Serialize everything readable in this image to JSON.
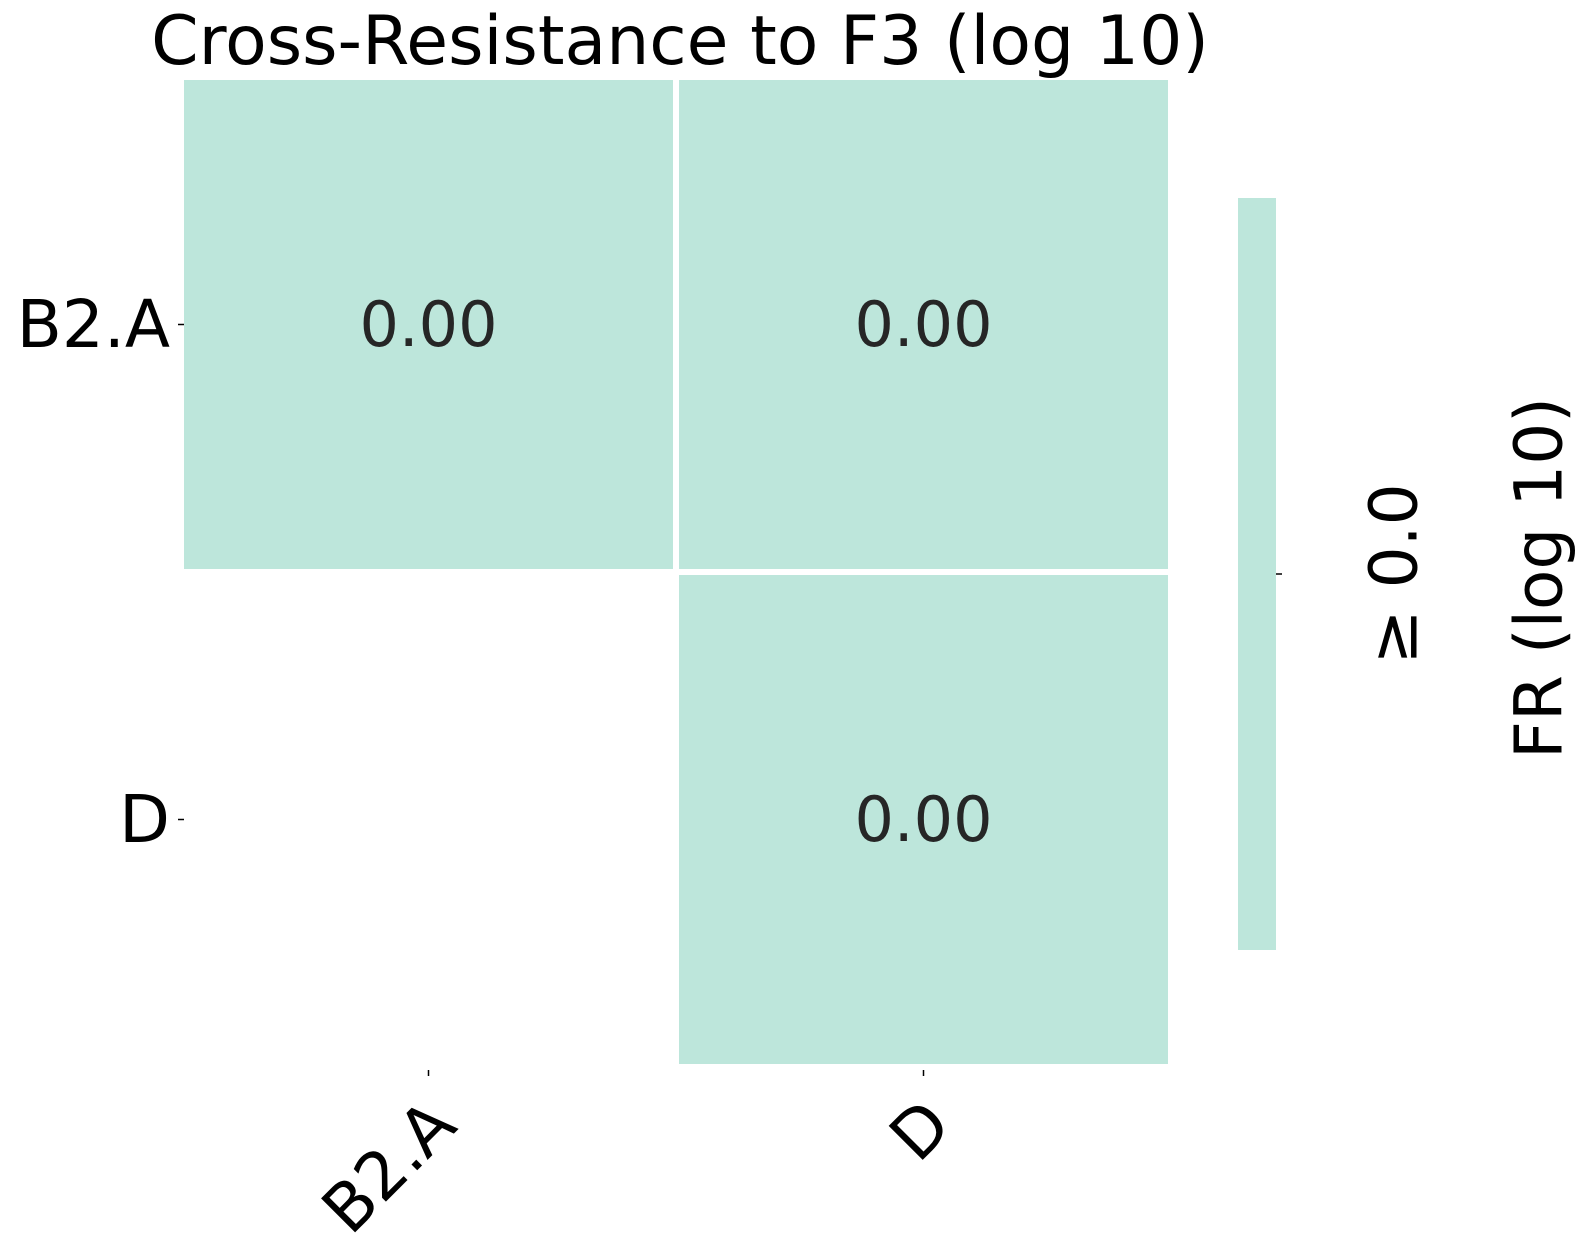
{
  "chart_data": {
    "type": "heatmap",
    "title": "Cross-Resistance to F3 (log 10)",
    "rows": [
      "B2.A",
      "D"
    ],
    "columns": [
      "B2.A",
      "D"
    ],
    "cells": [
      {
        "row": "B2.A",
        "col": "B2.A",
        "value": 0.0,
        "label": "0.00"
      },
      {
        "row": "B2.A",
        "col": "D",
        "value": 0.0,
        "label": "0.00"
      },
      {
        "row": "D",
        "col": "D",
        "value": 0.0,
        "label": "0.00"
      }
    ],
    "masked_cells": [
      {
        "row": "D",
        "col": "B2.A"
      }
    ],
    "cell_color": "#bde6db",
    "annotation_color": "#262626",
    "colorbar": {
      "label": "FR (log 10)",
      "tick_label": "≥ 0.0",
      "color": "#bde6db"
    },
    "grid": false
  }
}
